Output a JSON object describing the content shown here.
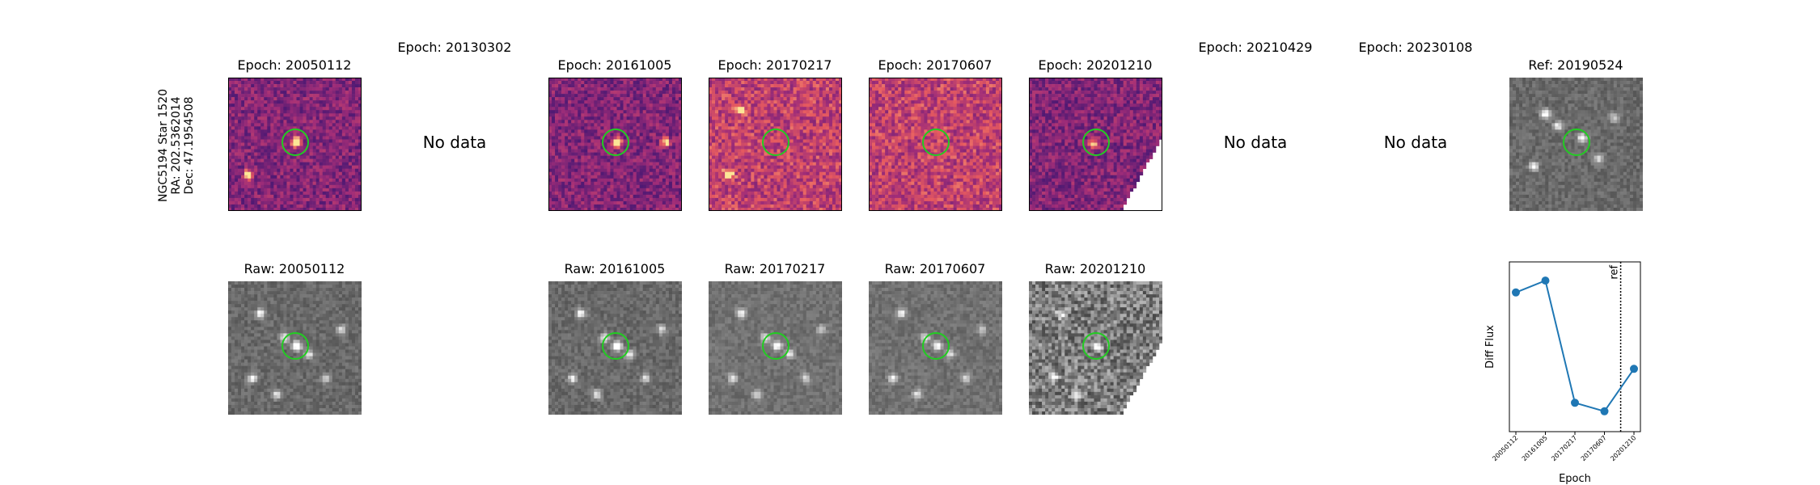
{
  "target_label": [
    "NGC5194 Star 1520",
    "RA: 202.5362014",
    "Dec: 47.1954508"
  ],
  "no_data_label": "No data",
  "colors": {
    "circle": "#22cc22",
    "line": "#1f77b4"
  },
  "columns": [
    {
      "diff_title": "Epoch: 20050112",
      "has_data": true,
      "raw_title": "Raw: 20050112"
    },
    {
      "diff_title": "Epoch: 20130302",
      "has_data": false
    },
    {
      "diff_title": "Epoch: 20161005",
      "has_data": true,
      "raw_title": "Raw: 20161005"
    },
    {
      "diff_title": "Epoch: 20170217",
      "has_data": true,
      "raw_title": "Raw: 20170217"
    },
    {
      "diff_title": "Epoch: 20170607",
      "has_data": true,
      "raw_title": "Raw: 20170607"
    },
    {
      "diff_title": "Epoch: 20201210",
      "has_data": true,
      "raw_title": "Raw: 20201210"
    },
    {
      "diff_title": "Epoch: 20210429",
      "has_data": false
    },
    {
      "diff_title": "Epoch: 20230108",
      "has_data": false
    },
    {
      "diff_title": "Ref: 20190524",
      "has_data": true
    }
  ],
  "chart_data": {
    "type": "line",
    "categories": [
      "20050112",
      "20161005",
      "20170217",
      "20170607",
      "20201210"
    ],
    "values": [
      0.82,
      0.89,
      0.17,
      0.12,
      0.37
    ],
    "xlabel": "Epoch",
    "ylabel": "Diff Flux",
    "ref_line": {
      "label": "ref",
      "position_between": [
        "20170607",
        "20201210"
      ],
      "fraction": 0.55
    },
    "ylim": [
      0,
      1
    ],
    "grid": false
  }
}
